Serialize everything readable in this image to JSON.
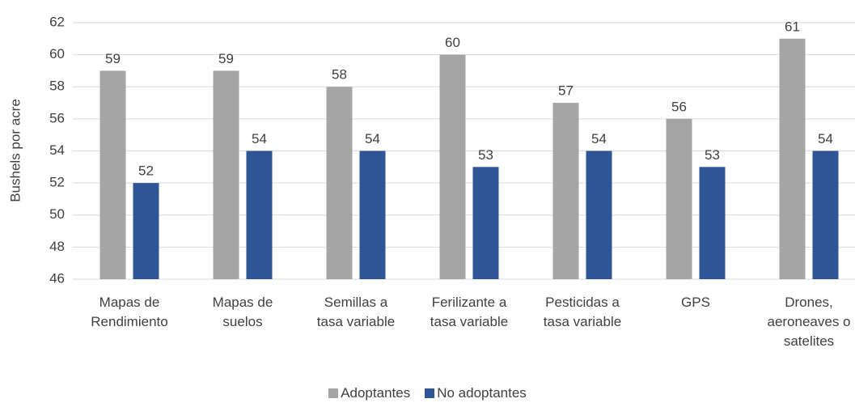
{
  "chart_data": {
    "type": "bar",
    "y_label": "Bushels por acre",
    "categories": [
      "Mapas de\nRendimiento",
      "Mapas de\nsuelos",
      "Semillas a\ntasa variable",
      "Ferilizante a\ntasa variable",
      "Pesticidas a\ntasa variable",
      "GPS",
      "Drones,\naeroneaves o\nsatelites"
    ],
    "series": [
      {
        "name": "Adoptantes",
        "color": "#a5a5a5",
        "values": [
          59,
          59,
          58,
          60,
          57,
          56,
          61
        ]
      },
      {
        "name": "No adoptantes",
        "color": "#2f5597",
        "values": [
          52,
          54,
          54,
          53,
          54,
          53,
          54
        ]
      }
    ],
    "ylim": [
      46,
      62
    ],
    "yticks": [
      46,
      48,
      50,
      52,
      54,
      56,
      58,
      60,
      62
    ],
    "grid": true
  }
}
